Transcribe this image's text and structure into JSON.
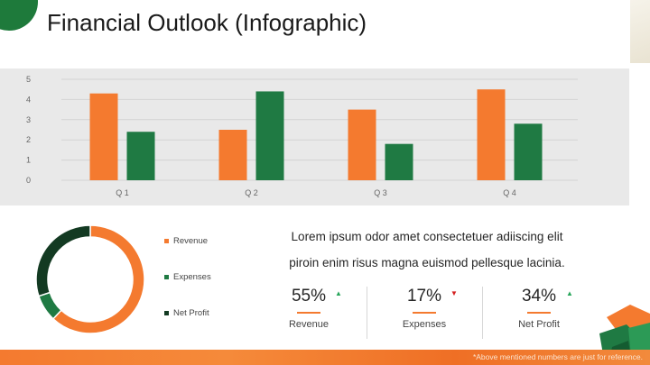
{
  "header": {
    "title": "Financial Outlook (Infographic)"
  },
  "chart_data": [
    {
      "type": "bar",
      "categories": [
        "Q 1",
        "Q 2",
        "Q 3",
        "Q 4"
      ],
      "series": [
        {
          "values": [
            4.3,
            2.5,
            3.5,
            4.5
          ],
          "color": "#f47a2f"
        },
        {
          "values": [
            2.4,
            4.4,
            1.8,
            2.8
          ],
          "color": "#1f7a43"
        }
      ],
      "ylim": [
        0,
        5
      ],
      "yticks": [
        "0",
        "1",
        "2",
        "3",
        "4",
        "5"
      ],
      "grid": true
    },
    {
      "type": "pie",
      "labels": [
        "Revenue",
        "Expenses",
        "Net Profit"
      ],
      "values": [
        62,
        8,
        30
      ],
      "colors": [
        "#f47a2f",
        "#1f7a43",
        "#133a22"
      ],
      "legend": "right"
    }
  ],
  "description": {
    "line1": "Lorem ipsum odor amet consectetuer adiiscing elit",
    "line2": "piroin enim risus magna euismod pellesque lacinia."
  },
  "kpis": [
    {
      "value": "55%",
      "label": "Revenue",
      "trend": "up",
      "trend_color": "#27a55a"
    },
    {
      "value": "17%",
      "label": "Expenses",
      "trend": "down",
      "trend_color": "#d42020"
    },
    {
      "value": "34%",
      "label": "Net Profit",
      "trend": "up",
      "trend_color": "#27a55a"
    }
  ],
  "footnote": "*Above mentioned numbers are just for reference."
}
